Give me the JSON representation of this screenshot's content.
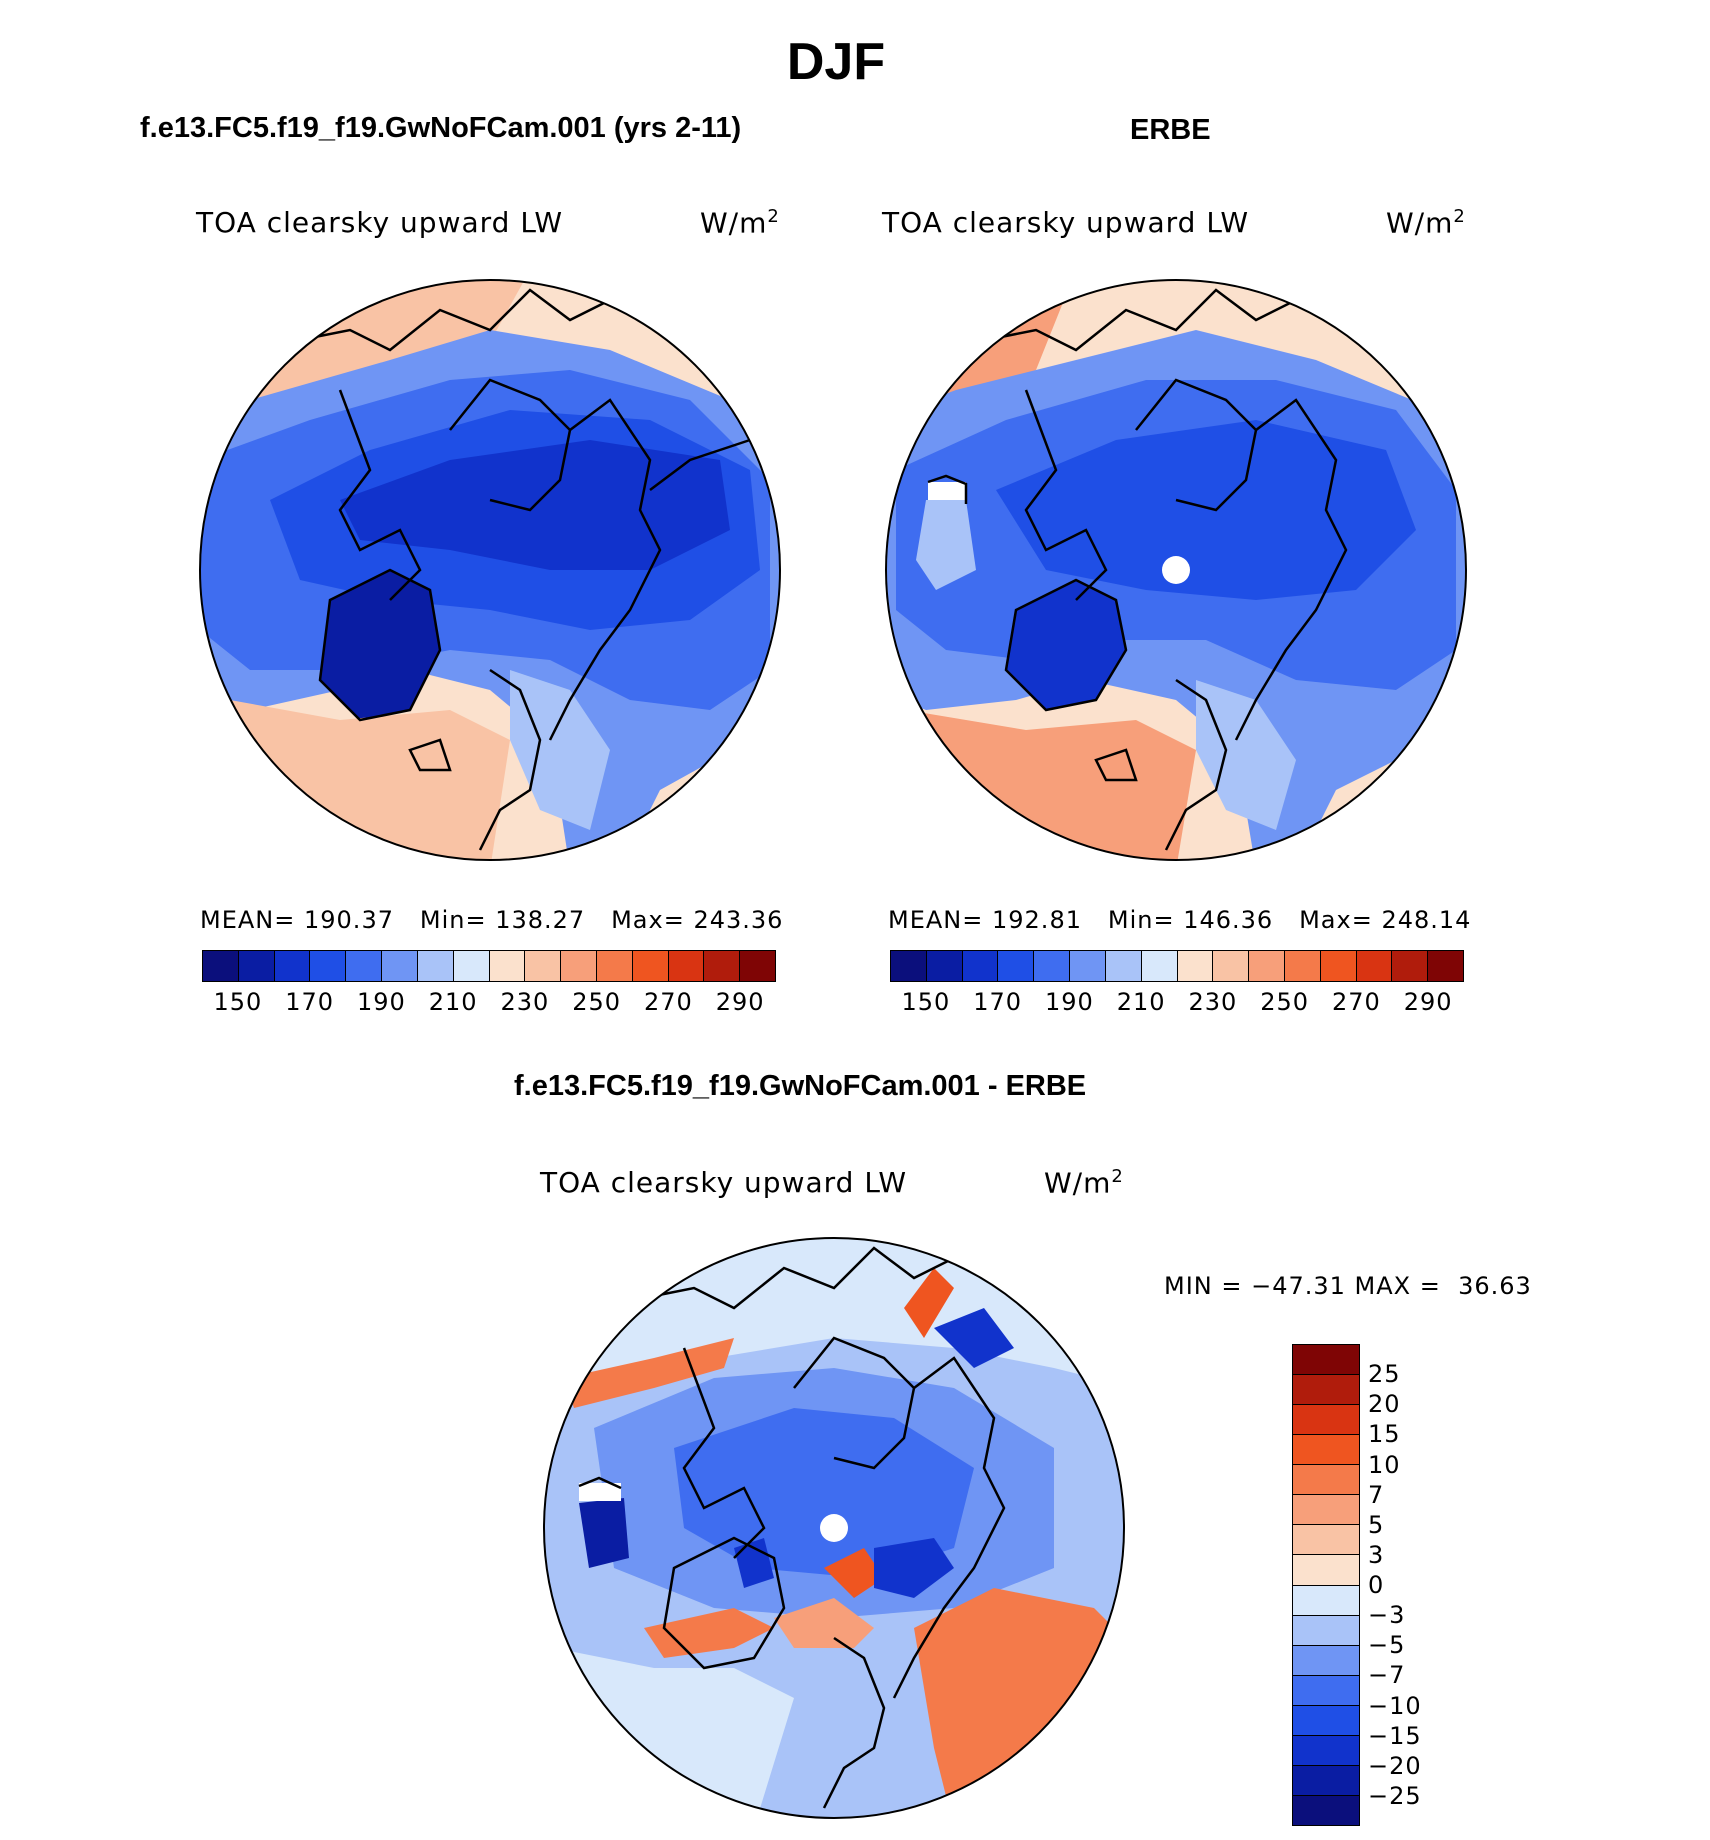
{
  "page_title": "DJF",
  "panels": [
    {
      "title": "f.e13.FC5.f19_f19.GwNoFCam.001 (yrs 2-11)",
      "variable": "TOA clearsky upward LW",
      "units": "W/m",
      "units_sup": "2",
      "stats": {
        "mean_label": "MEAN=",
        "mean": "190.37",
        "min_label": "Min=",
        "min": "138.27",
        "max_label": "Max=",
        "max": "243.36"
      }
    },
    {
      "title": "ERBE",
      "variable": "TOA clearsky upward LW",
      "units": "W/m",
      "units_sup": "2",
      "stats": {
        "mean_label": "MEAN=",
        "mean": "192.81",
        "min_label": "Min=",
        "min": "146.36",
        "max_label": "Max=",
        "max": "248.14"
      }
    },
    {
      "title": "f.e13.FC5.f19_f19.GwNoFCam.001 - ERBE",
      "variable": "TOA clearsky upward LW",
      "units": "W/m",
      "units_sup": "2",
      "stats_text": "MIN = −47.31 MAX =  36.63"
    }
  ],
  "colorbar_abs": {
    "colors": [
      "#0b0f7c",
      "#0a1da3",
      "#1133cc",
      "#1f4fe6",
      "#3f6df0",
      "#6f95f4",
      "#a9c3f8",
      "#d8e8fb",
      "#fbe1cd",
      "#f9c3a5",
      "#f79f7a",
      "#f47a4a",
      "#ef5520",
      "#d93412",
      "#b01c0c",
      "#7f0505"
    ],
    "tick_labels": [
      "150",
      "170",
      "190",
      "210",
      "230",
      "250",
      "270",
      "290"
    ]
  },
  "colorbar_diff": {
    "colors": [
      "#0b0f7c",
      "#0a1da3",
      "#1133cc",
      "#1f4fe6",
      "#3f6df0",
      "#6f95f4",
      "#a9c3f8",
      "#d8e8fb",
      "#fbe1cd",
      "#f9c3a5",
      "#f79f7a",
      "#f47a4a",
      "#ef5520",
      "#d93412",
      "#b01c0c",
      "#7f0505"
    ],
    "tick_labels": [
      "25",
      "20",
      "15",
      "10",
      "7",
      "5",
      "3",
      "0",
      "−3",
      "−5",
      "−7",
      "−10",
      "−15",
      "−20",
      "−25"
    ]
  }
}
